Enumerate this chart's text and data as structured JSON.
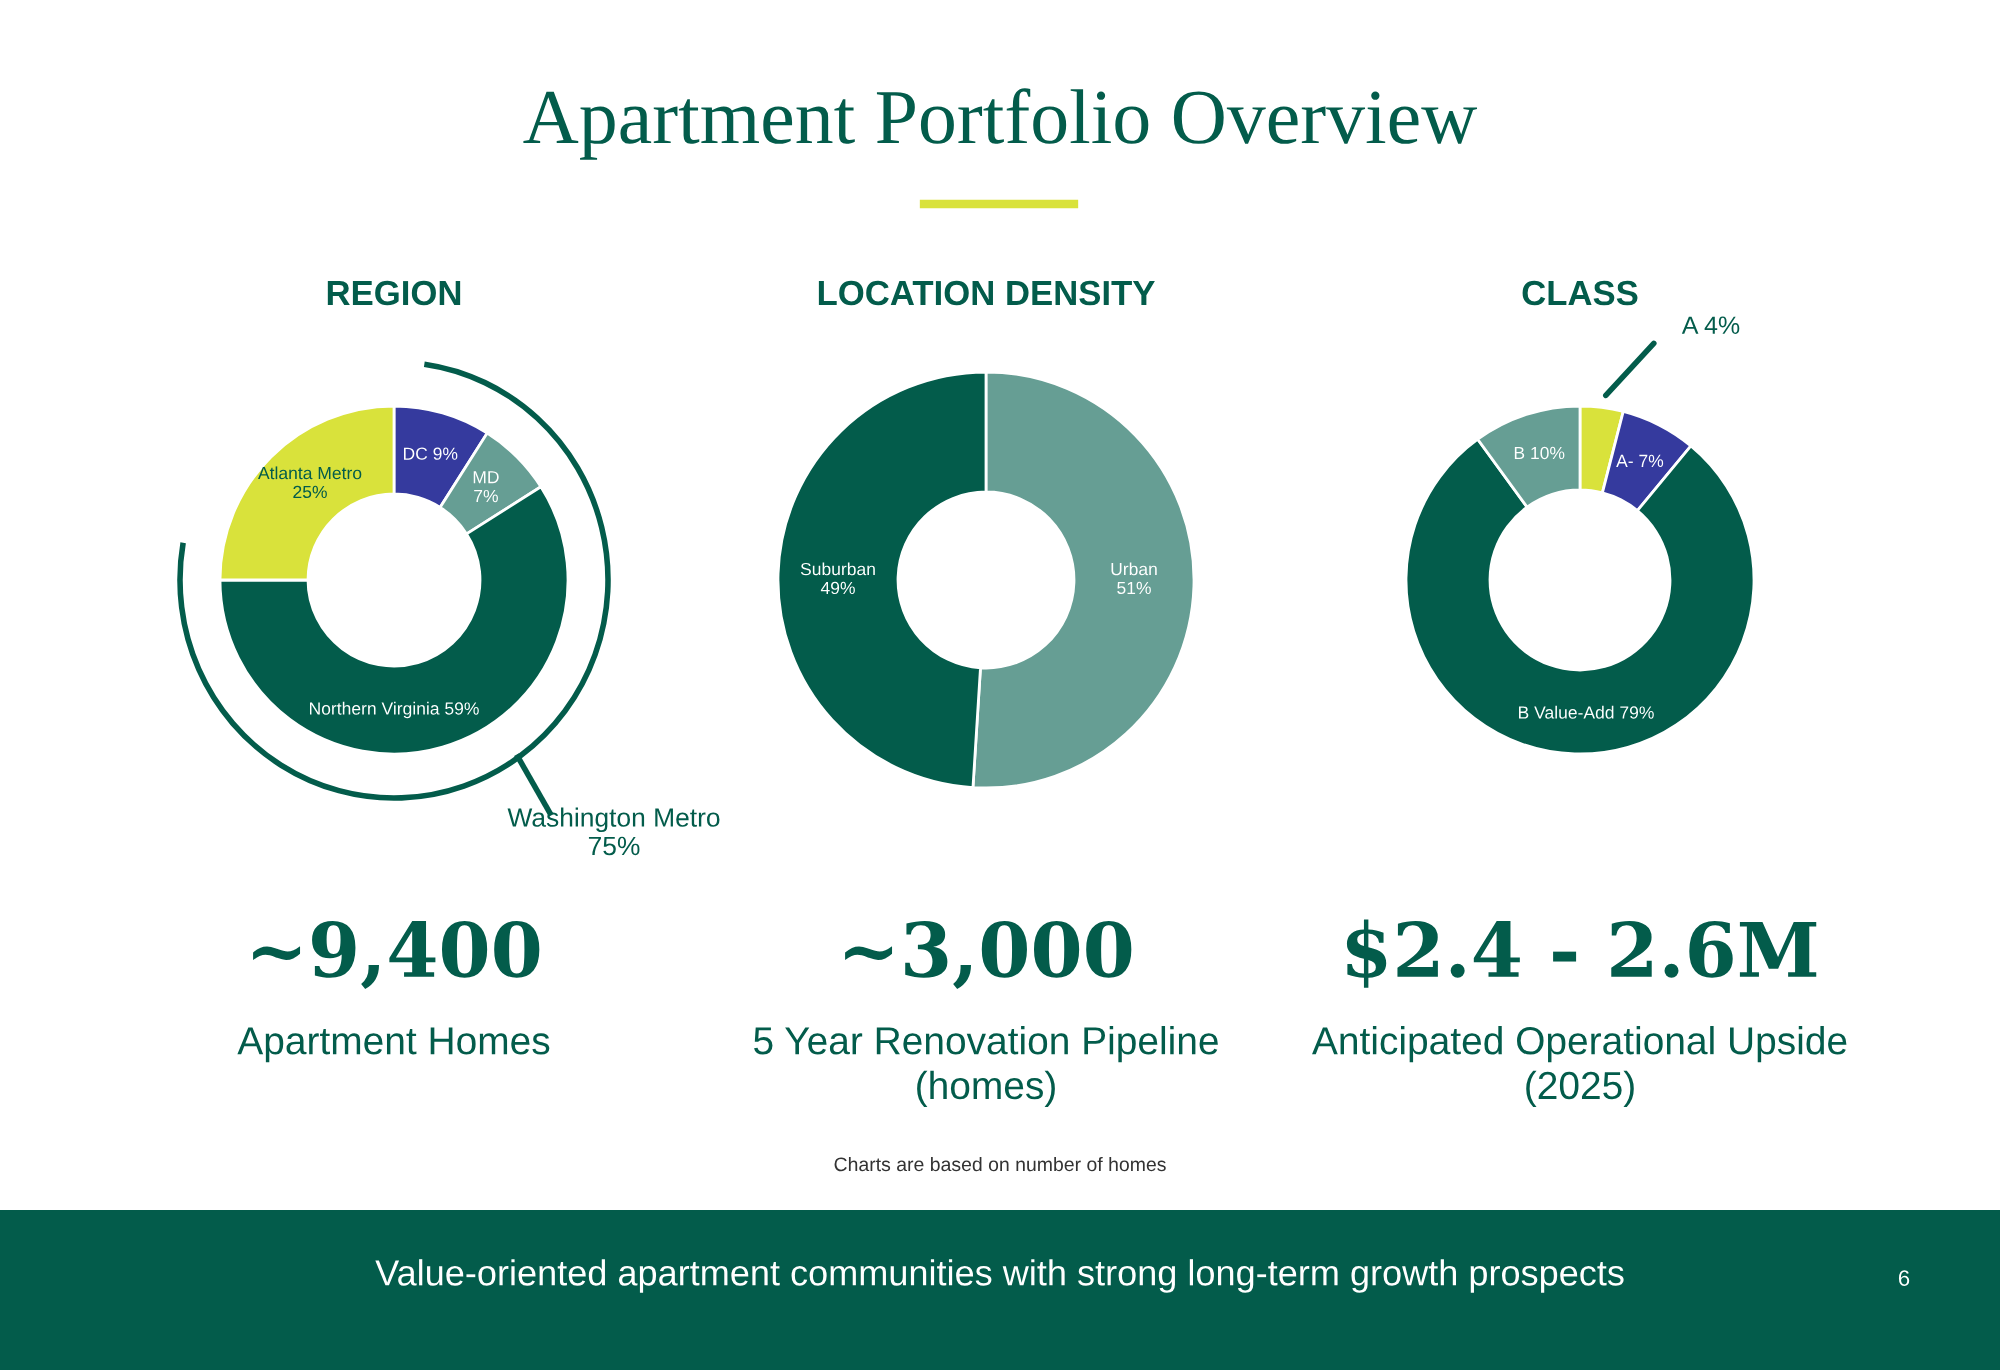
{
  "chart_data": [
    {
      "type": "donut",
      "title": "REGION",
      "categories": [
        "DC",
        "MD",
        "Northern Virginia",
        "Atlanta Metro"
      ],
      "values": [
        9,
        7,
        59,
        25
      ],
      "colors": [
        "#353a9e",
        "#669e94",
        "#035c4b",
        "#d9e23b"
      ],
      "value_labels": [
        "9%",
        "7%",
        "59%",
        "25%"
      ],
      "annotations": [
        "~9,400",
        "Apartment Homes",
        "Washington Metro\n75%"
      ]
    },
    {
      "type": "donut",
      "title": "LOCATION DENSITY",
      "categories": [
        "Urban",
        "Suburban"
      ],
      "values": [
        51,
        49
      ],
      "colors": [
        "#669e94",
        "#035c4b"
      ],
      "value_labels": [
        "51%",
        "49%"
      ],
      "annotations": [
        "~3,000",
        "5 Year Renovation Pipeline\n(homes)"
      ]
    },
    {
      "type": "donut",
      "title": "CLASS",
      "categories": [
        "A",
        "A-",
        "B Value-Add",
        "B"
      ],
      "values": [
        4,
        7,
        79,
        10
      ],
      "colors": [
        "#d9e23b",
        "#353a9e",
        "#035c4b",
        "#669e94"
      ],
      "value_labels": [
        "4%",
        "7%",
        "79%",
        "10%"
      ],
      "annotations": [
        "$2.4 - 2.6M",
        "Anticipated Operational Upside\n(2025)"
      ]
    },
    {
      "type": "other",
      "title": "Apartment Portfolio Overview",
      "annotations": [
        "Charts are based on number of homes",
        "Value-oriented apartment communities with strong long-term growth prospects",
        "6"
      ]
    }
  ]
}
